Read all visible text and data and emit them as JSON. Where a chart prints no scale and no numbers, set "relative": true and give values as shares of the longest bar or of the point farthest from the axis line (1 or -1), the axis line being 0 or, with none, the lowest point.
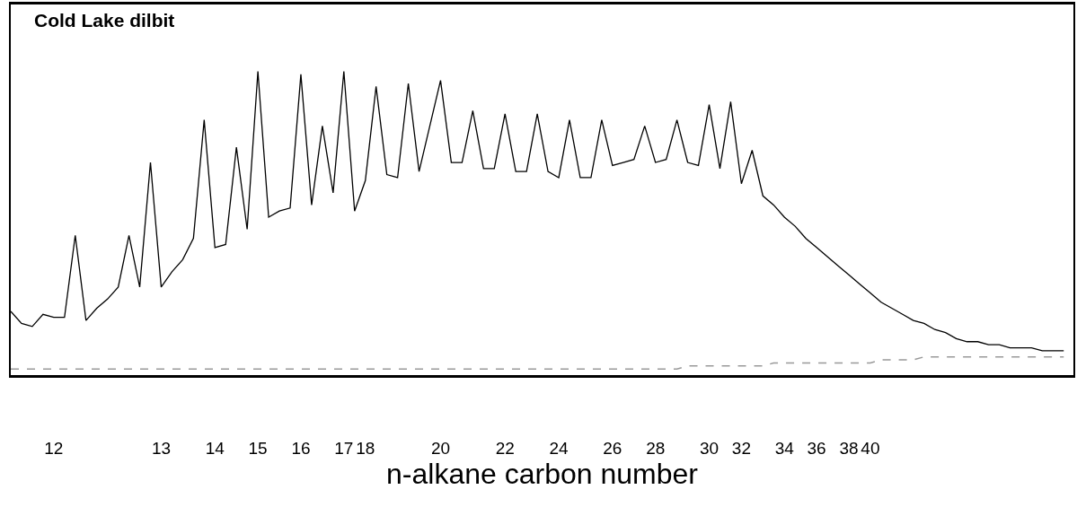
{
  "chart_data": {
    "type": "line",
    "title": "Cold Lake dilbit",
    "xlabel": "n-alkane carbon number",
    "relative": true,
    "categories": [
      null,
      null,
      null,
      null,
      "12",
      null,
      null,
      null,
      null,
      null,
      null,
      null,
      null,
      null,
      "13",
      null,
      null,
      null,
      null,
      "14",
      null,
      null,
      null,
      "15",
      null,
      null,
      null,
      "16",
      null,
      null,
      null,
      "17",
      null,
      "18",
      null,
      null,
      null,
      null,
      null,
      null,
      "20",
      null,
      null,
      null,
      null,
      null,
      "22",
      null,
      null,
      null,
      null,
      "24",
      null,
      null,
      null,
      null,
      "26",
      null,
      null,
      null,
      "28",
      null,
      null,
      null,
      null,
      "30",
      null,
      null,
      "32",
      null,
      null,
      null,
      "34",
      null,
      null,
      "36",
      null,
      null,
      "38",
      null,
      "40",
      null,
      null,
      null,
      null,
      null,
      null,
      null,
      null,
      null,
      null,
      null,
      null,
      null,
      null,
      null,
      null,
      null,
      null
    ],
    "tick_labels": "x",
    "marker": "none",
    "series": [
      {
        "color": "#000000",
        "line_style": "solid",
        "values": [
          0.21,
          0.17,
          0.16,
          0.2,
          0.19,
          0.19,
          0.46,
          0.18,
          0.22,
          0.25,
          0.29,
          0.46,
          0.29,
          0.7,
          0.29,
          0.34,
          0.38,
          0.45,
          0.84,
          0.42,
          0.43,
          0.75,
          0.48,
          1,
          0.52,
          0.54,
          0.55,
          0.99,
          0.56,
          0.82,
          0.6,
          1,
          0.54,
          0.64,
          0.95,
          0.66,
          0.65,
          0.96,
          0.67,
          0.82,
          0.97,
          0.7,
          0.7,
          0.87,
          0.68,
          0.68,
          0.86,
          0.67,
          0.67,
          0.86,
          0.67,
          0.65,
          0.84,
          0.65,
          0.65,
          0.84,
          0.69,
          0.7,
          0.71,
          0.82,
          0.7,
          0.71,
          0.84,
          0.7,
          0.69,
          0.89,
          0.68,
          0.9,
          0.63,
          0.74,
          0.59,
          0.56,
          0.52,
          0.49,
          0.45,
          0.42,
          0.39,
          0.36,
          0.33,
          0.3,
          0.27,
          0.24,
          0.22,
          0.2,
          0.18,
          0.17,
          0.15,
          0.14,
          0.12,
          0.11,
          0.11,
          0.1,
          0.1,
          0.09,
          0.09,
          0.09,
          0.08,
          0.08,
          0.08
        ]
      },
      {
        "color": "#999999",
        "line_style": "dashed",
        "values": [
          0.02,
          0.02,
          0.02,
          0.02,
          0.02,
          0.02,
          0.02,
          0.02,
          0.02,
          0.02,
          0.02,
          0.02,
          0.02,
          0.02,
          0.02,
          0.02,
          0.02,
          0.02,
          0.02,
          0.02,
          0.02,
          0.02,
          0.02,
          0.02,
          0.02,
          0.02,
          0.02,
          0.02,
          0.02,
          0.02,
          0.02,
          0.02,
          0.02,
          0.02,
          0.02,
          0.02,
          0.02,
          0.02,
          0.02,
          0.02,
          0.02,
          0.02,
          0.02,
          0.02,
          0.02,
          0.02,
          0.02,
          0.02,
          0.02,
          0.02,
          0.02,
          0.02,
          0.02,
          0.02,
          0.02,
          0.02,
          0.02,
          0.02,
          0.02,
          0.02,
          0.02,
          0.02,
          0.02,
          0.03,
          0.03,
          0.03,
          0.03,
          0.03,
          0.03,
          0.03,
          0.03,
          0.04,
          0.04,
          0.04,
          0.04,
          0.04,
          0.04,
          0.04,
          0.04,
          0.04,
          0.04,
          0.05,
          0.05,
          0.05,
          0.05,
          0.06,
          0.06,
          0.06,
          0.06,
          0.06,
          0.06,
          0.06,
          0.06,
          0.06,
          0.06,
          0.06,
          0.06,
          0.06,
          0.06
        ]
      }
    ]
  }
}
